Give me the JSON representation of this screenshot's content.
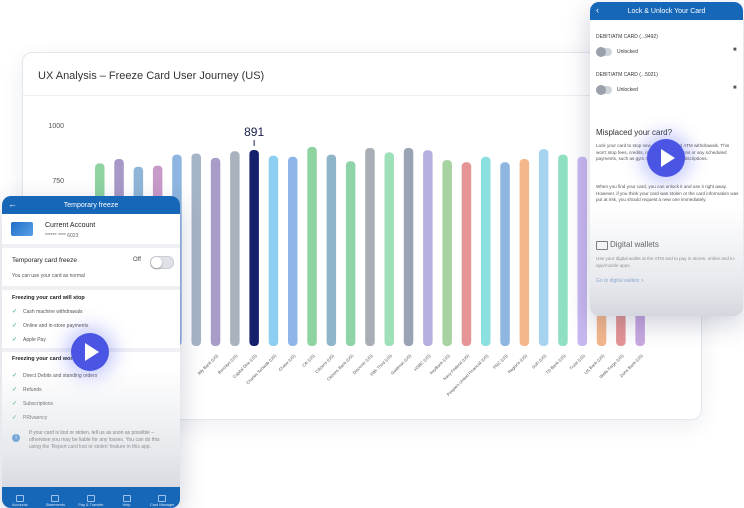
{
  "chart": {
    "title": "UX Analysis – Freeze Card User Journey (US)",
    "highlight_value": "891"
  },
  "chart_data": {
    "type": "bar",
    "title": "UX Analysis – Freeze Card User Journey (US)",
    "xlabel": "",
    "ylabel": "",
    "yticks": [
      1000,
      750
    ],
    "ylim": [
      600,
      1080
    ],
    "categories": [
      "",
      "",
      "",
      "",
      "",
      "",
      "",
      "",
      "",
      "",
      "",
      "",
      "",
      "",
      "",
      "",
      "",
      "",
      "",
      "",
      "",
      "",
      "",
      "",
      "",
      "",
      "",
      "",
      ""
    ],
    "visible_tick_labels": [
      "Ally Bank (US)",
      "Barclays (US)",
      "Capital One (US)",
      "Charles Schwab (US)",
      "Chase (US)",
      "Citi (US)",
      "Citizens (US)",
      "Citizens Bank (US)",
      "Discover (US)",
      "Fifth Third (US)",
      "Goldman (US)",
      "HSBC (US)",
      "KeyBank (US)",
      "Navy Federal (US)",
      "People's United Financial (US)",
      "PNC (US)",
      "Regions (US)",
      "SoFi (US)",
      "TD Bank (US)",
      "Truist (US)",
      "US Bank (US)",
      "Wells Fargo (US)",
      "Zions Bank (US)"
    ],
    "values": [
      830,
      850,
      815,
      820,
      870,
      875,
      855,
      885,
      891,
      865,
      860,
      905,
      870,
      840,
      900,
      880,
      900,
      890,
      845,
      835,
      860,
      835,
      850,
      895,
      870,
      860,
      855,
      848,
      842
    ],
    "highlight_index": 8,
    "highlight_color": "#14206b",
    "bar_colors": [
      "#8fd3a0",
      "#a898c8",
      "#8fb6d8",
      "#c89ac8",
      "#8fb6e0",
      "#a6b4c8",
      "#a89cc8",
      "#a9b3bd",
      "#14206b",
      "#8ccff0",
      "#8fb6e8",
      "#8fd3a0",
      "#8fb6c8",
      "#8fd3a8",
      "#a9adb5",
      "#9fe0b8",
      "#9aa3b4",
      "#b4b0e0",
      "#a6d3a0",
      "#e59595",
      "#8ce0e0",
      "#8fb6e0",
      "#f4b78c",
      "#a6d4f0",
      "#8fe0c0",
      "#c8b8f0",
      "#f4b78c",
      "#e59595",
      "#c8a8e0"
    ],
    "grid": false,
    "legend": "none"
  },
  "left_phone": {
    "header": "Temporary freeze",
    "back_icon": "arrow-left-icon",
    "account_name": "Current Account",
    "account_number": "****** **** 6023",
    "freeze_label": "Temporary card freeze",
    "freeze_state": "Off",
    "freeze_note": "You can use your card as normal",
    "stop_heading": "Freezing your card will stop",
    "stop_items": [
      "Cash machine withdrawals",
      "Online and in-store payments",
      "Apple Pay"
    ],
    "work_heading": "Freezing your card won't stop",
    "work_items": [
      "Direct Debits and standing orders",
      "Refunds",
      "Subscriptions",
      "PRIvaency"
    ],
    "info_text": "If your card is lost or stolen, tell us as soon as possible – otherwise you may be liable for any losses. You can do this using the 'Report card lost or stolen' feature in this app.",
    "nav_items": [
      "Accounts",
      "Statements",
      "Pay & Transfer",
      "Help",
      "Card Manager"
    ]
  },
  "right_phone": {
    "header": "Lock & Unlock Your Card",
    "cards": [
      {
        "label": "DEBIT/ATM CARD (...9492)",
        "status": "Unlocked"
      },
      {
        "label": "DEBIT/ATM CARD (...5021)",
        "status": "Unlocked"
      }
    ],
    "misplaced_title": "Misplaced your card?",
    "misplaced_text": "Lock your card to stop new purchases and ATM withdrawals. This won't stop fees, credits, repeating transactions or any scheduled payments, such as gym memberships or subscriptions.",
    "found_text": "When you find your card, you can unlock it and use it right away. However, if you think your card was stolen or the card information was put at risk, you should request a new one immediately.",
    "wallet_title": "Digital wallets",
    "wallet_text": "Use your digital wallet at the ATM and to pay in stores, online and in-app/mobile apps.",
    "wallet_link": "Go to digital wallets >"
  },
  "colors": {
    "brand_blue": "#1667b8",
    "play_button": "#4a55e3",
    "highlight_bar": "#14206b"
  }
}
